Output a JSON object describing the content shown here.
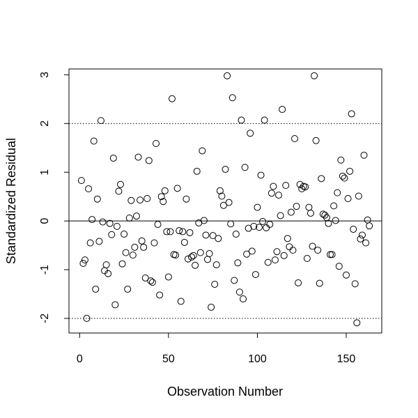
{
  "chart_data": {
    "type": "scatter",
    "xlabel": "Observation Number",
    "ylabel": "Standardized Residual",
    "xlim": [
      -6,
      170
    ],
    "ylim": [
      -2.3,
      3.12
    ],
    "xticks": [
      0,
      50,
      100,
      150
    ],
    "xtick_labels": [
      "0",
      "50",
      "100",
      "150"
    ],
    "yticks": [
      -2,
      -1,
      0,
      1,
      2,
      3
    ],
    "ytick_labels": [
      "-2",
      "-1",
      "0",
      "1",
      "2",
      "3"
    ],
    "reference_lines": [
      {
        "y": 0,
        "style": "solid"
      },
      {
        "y": 2,
        "style": "dotted"
      },
      {
        "y": -2,
        "style": "dotted"
      }
    ],
    "grid": false,
    "marker": "open-circle",
    "series": [
      {
        "x": [
          1,
          2,
          3,
          4,
          5,
          6,
          7,
          8,
          9,
          10,
          11,
          12,
          13,
          14,
          15,
          16,
          17,
          18,
          19,
          20,
          21,
          22,
          23,
          24,
          25,
          26,
          27,
          28,
          29,
          30,
          31,
          32,
          33,
          34,
          35,
          36,
          37,
          38,
          39,
          40,
          41,
          42,
          43,
          44,
          45,
          46,
          47,
          48,
          49,
          50,
          51,
          52,
          53,
          54,
          55,
          56,
          57,
          58,
          59,
          60,
          61,
          62,
          63,
          64,
          65,
          66,
          67,
          68,
          69,
          70,
          71,
          72,
          73,
          74,
          75,
          76,
          77,
          78,
          79,
          80,
          81,
          82,
          83,
          84,
          85,
          86,
          87,
          88,
          89,
          90,
          91,
          92,
          93,
          94,
          95,
          96,
          97,
          98,
          99,
          100,
          101,
          102,
          103,
          104,
          105,
          106,
          107,
          108,
          109,
          110,
          111,
          112,
          113,
          114,
          115,
          116,
          117,
          118,
          119,
          120,
          121,
          122,
          123,
          124,
          125,
          126,
          127,
          128,
          129,
          130,
          131,
          132,
          133,
          134,
          135,
          136,
          137,
          138,
          139,
          140,
          141,
          142,
          143,
          144,
          145,
          146,
          147,
          148,
          149,
          150,
          151,
          152,
          153,
          154,
          155,
          156,
          157,
          158,
          159,
          160,
          161,
          162,
          163
        ],
        "y": [
          0.83,
          -0.87,
          -0.8,
          -2.0,
          0.66,
          -0.45,
          0.03,
          1.64,
          -1.4,
          0.45,
          -0.42,
          2.06,
          -0.02,
          -1.02,
          -0.9,
          -1.08,
          -0.05,
          -0.28,
          1.29,
          -1.72,
          -0.11,
          0.61,
          0.75,
          -0.88,
          -0.27,
          -0.65,
          -1.4,
          0.06,
          0.42,
          -0.7,
          -0.54,
          0.1,
          1.31,
          0.43,
          -0.41,
          -0.54,
          -1.17,
          0.46,
          1.24,
          -1.23,
          -1.26,
          -0.45,
          1.59,
          -0.07,
          -1.52,
          0.5,
          0.4,
          0.62,
          -0.22,
          -1.15,
          -0.22,
          2.51,
          -0.69,
          -0.7,
          0.67,
          -0.2,
          -1.65,
          -0.22,
          -0.44,
          0.45,
          -0.78,
          -0.24,
          -0.74,
          -0.71,
          -0.91,
          1.02,
          -0.04,
          -0.65,
          1.44,
          0.01,
          -0.29,
          -0.79,
          -0.67,
          -1.77,
          -0.3,
          -1.3,
          -0.9,
          -0.36,
          0.62,
          0.51,
          0.32,
          1.06,
          2.98,
          0.38,
          -0.06,
          2.53,
          -1.22,
          -0.27,
          -0.86,
          -1.46,
          2.07,
          -1.6,
          1.1,
          -0.68,
          -0.15,
          1.8,
          -0.62,
          -0.11,
          -1.1,
          0.28,
          -0.13,
          0.94,
          -0.01,
          2.07,
          -0.14,
          -0.85,
          -0.07,
          0.57,
          0.71,
          -0.8,
          -0.63,
          0.53,
          0.11,
          2.29,
          -0.71,
          0.73,
          -0.36,
          -0.53,
          0.18,
          -0.6,
          1.69,
          0.3,
          -1.27,
          0.75,
          0.66,
          0.71,
          0.7,
          -0.77,
          0.28,
          0.16,
          -0.52,
          2.98,
          1.65,
          -0.6,
          -1.28,
          0.87,
          0.14,
          0.12,
          0.07,
          -0.05,
          -0.69,
          -0.69,
          0.31,
          0.01,
          0.58,
          -0.93,
          1.25,
          0.92,
          0.88,
          -1.11,
          0.46,
          1.02,
          2.2,
          -0.17,
          -1.29,
          -2.09,
          0.51,
          -0.37,
          -0.29,
          1.35,
          -0.45,
          0.02,
          -0.1
        ]
      }
    ]
  }
}
